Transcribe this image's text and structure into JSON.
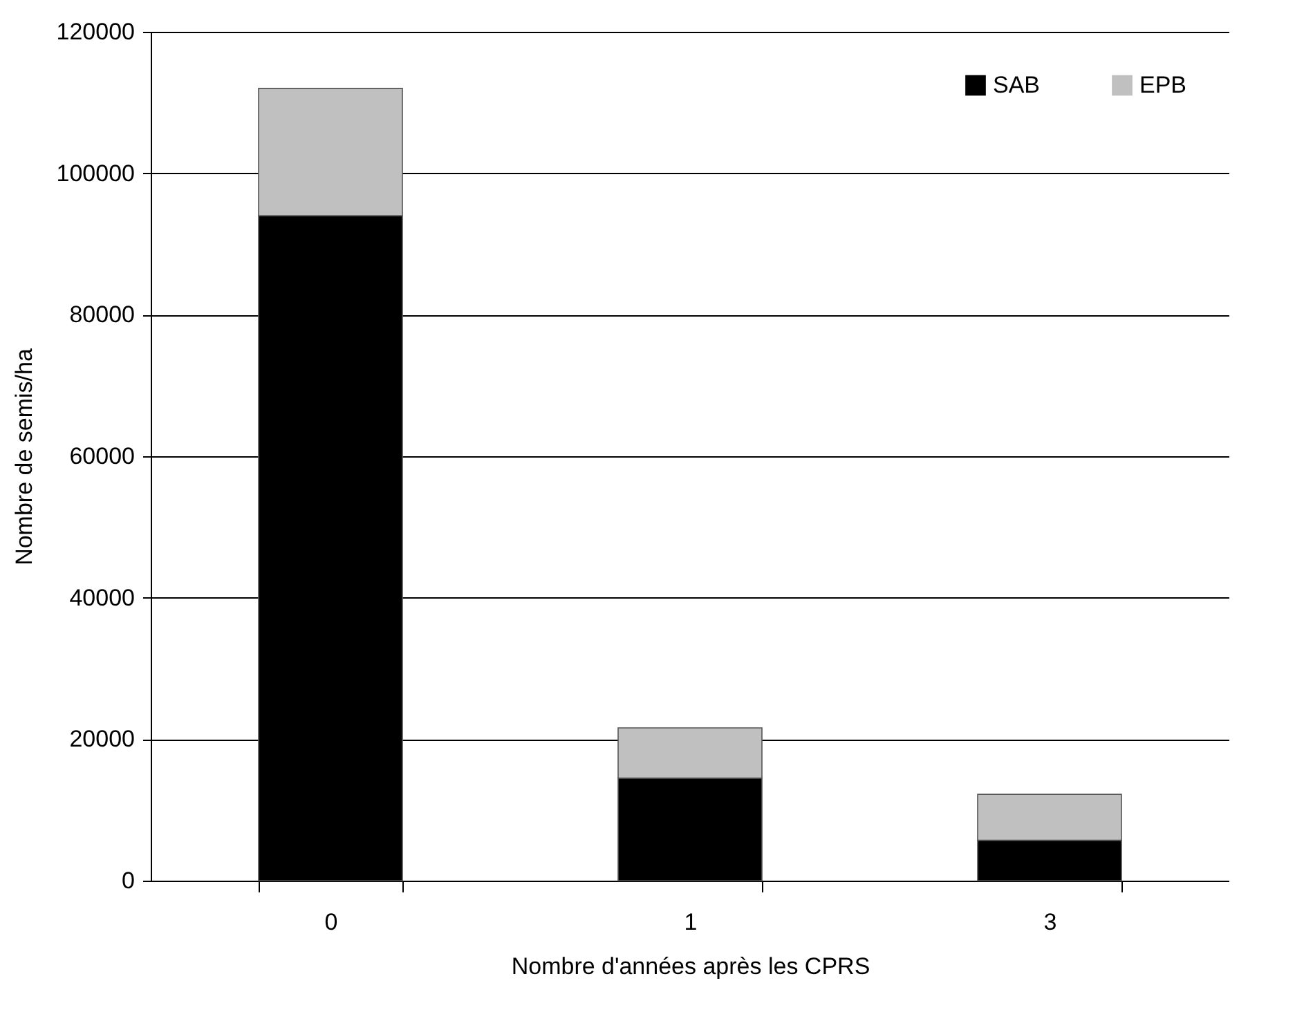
{
  "chart_data": {
    "type": "bar",
    "stacked": true,
    "xlabel": "Nombre d'années après les CPRS",
    "ylabel": "Nombre de semis/ha",
    "categories": [
      "0",
      "1",
      "3"
    ],
    "series": [
      {
        "name": "SAB",
        "color": "#000000",
        "values": [
          94000,
          14500,
          5700
        ]
      },
      {
        "name": "EPB",
        "color": "#c0c0c0",
        "values": [
          18000,
          7100,
          6500
        ]
      }
    ],
    "ylim": [
      0,
      120000
    ],
    "yticks": [
      0,
      20000,
      40000,
      60000,
      80000,
      100000,
      120000
    ],
    "grid": "y",
    "legend": "top right"
  }
}
